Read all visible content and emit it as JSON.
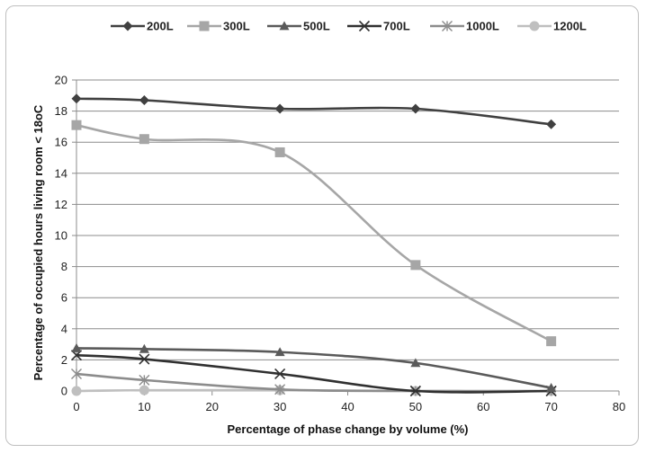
{
  "chart_data": {
    "type": "line",
    "title": "",
    "xlabel": "Percentage of phase change by volume (%)",
    "ylabel": "Percentage  of occupied hours living room < 18oC",
    "xlim": [
      0,
      80
    ],
    "ylim": [
      0,
      20
    ],
    "x_ticks": [
      0,
      10,
      20,
      30,
      40,
      50,
      60,
      70,
      80
    ],
    "y_ticks": [
      0,
      2,
      4,
      6,
      8,
      10,
      12,
      14,
      16,
      18,
      20
    ],
    "grid": "horizontal",
    "legend_position": "top",
    "x": [
      0,
      10,
      30,
      50,
      70
    ],
    "series": [
      {
        "name": "200L",
        "values": [
          18.8,
          18.7,
          18.15,
          18.15,
          17.15
        ],
        "color": "#404040",
        "marker": "diamond"
      },
      {
        "name": "300L",
        "values": [
          17.1,
          16.2,
          15.35,
          8.1,
          3.2
        ],
        "color": "#a6a6a6",
        "marker": "square"
      },
      {
        "name": "500L",
        "values": [
          2.75,
          2.7,
          2.5,
          1.8,
          0.2
        ],
        "color": "#5a5a5a",
        "marker": "triangle"
      },
      {
        "name": "700L",
        "values": [
          2.3,
          2.05,
          1.1,
          0.0,
          0.0
        ],
        "color": "#303030",
        "marker": "x"
      },
      {
        "name": "1000L",
        "values": [
          1.1,
          0.7,
          0.1,
          0.0,
          0.0
        ],
        "color": "#8c8c8c",
        "marker": "star"
      },
      {
        "name": "1200L",
        "values": [
          0.0,
          0.05,
          0.05,
          0.0,
          0.0
        ],
        "color": "#bfbfbf",
        "marker": "circle"
      }
    ]
  }
}
